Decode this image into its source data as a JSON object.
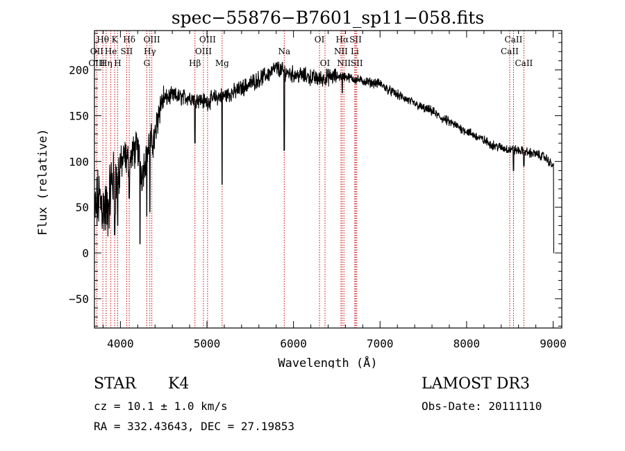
{
  "chart_data": {
    "type": "line",
    "title": "spec−55876−B7601_sp11−058.fits",
    "xlabel": "Wavelength (Å)",
    "ylabel": "Flux (relative)",
    "xlim": [
      3700,
      9100
    ],
    "ylim": [
      -82,
      243
    ],
    "x_ticks": [
      4000,
      5000,
      6000,
      7000,
      8000,
      9000
    ],
    "y_ticks": [
      -50,
      0,
      50,
      100,
      150,
      200
    ],
    "y_tick_labels": [
      "−50",
      "0",
      "50",
      "100",
      "150",
      "200"
    ],
    "spectrum_anchors": {
      "x": [
        3700,
        3750,
        3800,
        3850,
        3900,
        3950,
        4000,
        4050,
        4100,
        4150,
        4200,
        4250,
        4300,
        4350,
        4400,
        4450,
        4500,
        4600,
        4700,
        4800,
        4900,
        5000,
        5100,
        5200,
        5300,
        5400,
        5500,
        5600,
        5700,
        5800,
        5900,
        6000,
        6100,
        6200,
        6300,
        6400,
        6500,
        6600,
        6700,
        6800,
        6900,
        7000,
        7100,
        7200,
        7300,
        7400,
        7500,
        7600,
        7700,
        7800,
        7900,
        8000,
        8100,
        8200,
        8300,
        8400,
        8500,
        8600,
        8700,
        8800,
        8900,
        9000
      ],
      "y": [
        40,
        60,
        50,
        45,
        80,
        75,
        95,
        105,
        100,
        110,
        115,
        85,
        110,
        120,
        125,
        160,
        168,
        172,
        170,
        170,
        168,
        165,
        170,
        172,
        175,
        180,
        185,
        190,
        195,
        202,
        198,
        195,
        194,
        192,
        190,
        192,
        193,
        193,
        190,
        188,
        186,
        185,
        178,
        173,
        168,
        163,
        158,
        155,
        148,
        143,
        138,
        133,
        128,
        123,
        118,
        115,
        113,
        112,
        110,
        108,
        105,
        95
      ]
    },
    "absorption_features": [
      {
        "x": 3934,
        "y": 20
      },
      {
        "x": 3969,
        "y": 30
      },
      {
        "x": 4102,
        "y": 60
      },
      {
        "x": 4227,
        "y": 10
      },
      {
        "x": 4305,
        "y": 40
      },
      {
        "x": 4341,
        "y": 45
      },
      {
        "x": 4861,
        "y": 120
      },
      {
        "x": 5175,
        "y": 75
      },
      {
        "x": 5893,
        "y": 112
      },
      {
        "x": 6563,
        "y": 175
      },
      {
        "x": 8542,
        "y": 90
      },
      {
        "x": 8662,
        "y": 95
      },
      {
        "x": 9010,
        "y": 0
      }
    ],
    "line_labels": [
      {
        "label": "Hθ",
        "wavelength": 3797,
        "row": 1
      },
      {
        "label": "K",
        "wavelength": 3934,
        "row": 1
      },
      {
        "label": "Hδ",
        "wavelength": 4102,
        "row": 1
      },
      {
        "label": "OIII",
        "wavelength": 4363,
        "row": 1
      },
      {
        "label": "OIII",
        "wavelength": 5007,
        "row": 1
      },
      {
        "label": "OI",
        "wavelength": 6300,
        "row": 1
      },
      {
        "label": "Hα",
        "wavelength": 6563,
        "row": 1
      },
      {
        "label": "SII",
        "wavelength": 6717,
        "row": 1
      },
      {
        "label": "CaII",
        "wavelength": 8542,
        "row": 1
      },
      {
        "label": "OII",
        "wavelength": 3727,
        "row": 2
      },
      {
        "label": "He",
        "wavelength": 3889,
        "row": 2
      },
      {
        "label": "SII",
        "wavelength": 4072,
        "row": 2
      },
      {
        "label": "Hγ",
        "wavelength": 4340,
        "row": 2
      },
      {
        "label": "OIII",
        "wavelength": 4959,
        "row": 2
      },
      {
        "label": "Na",
        "wavelength": 5893,
        "row": 2
      },
      {
        "label": "NII",
        "wavelength": 6548,
        "row": 2
      },
      {
        "label": "Li",
        "wavelength": 6708,
        "row": 2
      },
      {
        "label": "CaII",
        "wavelength": 8498,
        "row": 2
      },
      {
        "label": "OIII",
        "wavelength": 3727,
        "row": 3
      },
      {
        "label": "Hη",
        "wavelength": 3835,
        "row": 3
      },
      {
        "label": "H",
        "wavelength": 3969,
        "row": 3
      },
      {
        "label": "G",
        "wavelength": 4305,
        "row": 3
      },
      {
        "label": "Hβ",
        "wavelength": 4861,
        "row": 3
      },
      {
        "label": "Mg",
        "wavelength": 5175,
        "row": 3
      },
      {
        "label": "OI",
        "wavelength": 6364,
        "row": 3
      },
      {
        "label": "NII",
        "wavelength": 6583,
        "row": 3
      },
      {
        "label": "SII",
        "wavelength": 6731,
        "row": 3
      },
      {
        "label": "CaII",
        "wavelength": 8662,
        "row": 3
      }
    ],
    "marker_lines": [
      3727,
      3797,
      3835,
      3889,
      3934,
      3969,
      4072,
      4102,
      4305,
      4340,
      4363,
      4861,
      4959,
      5007,
      5175,
      5893,
      6300,
      6364,
      6548,
      6563,
      6583,
      6708,
      6717,
      6731,
      8498,
      8542,
      8662
    ]
  },
  "info": {
    "class_label": "STAR",
    "subclass": "K4",
    "survey": "LAMOST DR3",
    "cz_text": "cz = 10.1 ± 1.0 km/s",
    "obs_date_text": "Obs-Date: 20111110",
    "coords_text": "RA = 332.43643, DEC =  27.19853"
  },
  "colors": {
    "axis": "#000000",
    "spectrum": "#000000",
    "marker_line": "#cc0000"
  }
}
